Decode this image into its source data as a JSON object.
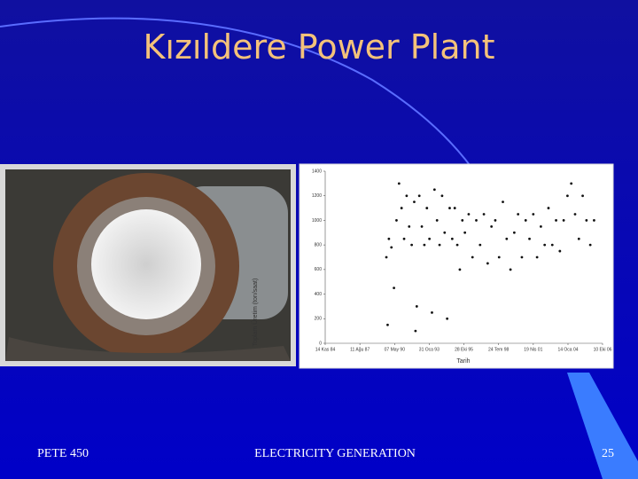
{
  "slide": {
    "title": "Kızıldere Power Plant",
    "footer_left": "PETE 450",
    "footer_center": "ELECTRICITY GENERATION",
    "page_number": "25"
  },
  "chart_data": {
    "type": "scatter",
    "x_label": "Tarih",
    "y_label": "Toplam Üretim (ton/saat)",
    "color": "#111111",
    "x": [
      1989.7,
      1989.8,
      1989.9,
      1990.1,
      1990.3,
      1990.5,
      1990.7,
      1990.9,
      1991.1,
      1991.3,
      1991.5,
      1991.7,
      1991.9,
      1992.0,
      1992.1,
      1992.3,
      1992.5,
      1992.7,
      1992.9,
      1993.1,
      1993.3,
      1993.5,
      1993.7,
      1993.9,
      1994.1,
      1994.3,
      1994.5,
      1994.7,
      1994.9,
      1995.1,
      1995.3,
      1995.5,
      1995.7,
      1995.9,
      1996.2,
      1996.5,
      1996.8,
      1997.1,
      1997.4,
      1997.7,
      1998.0,
      1998.3,
      1998.6,
      1998.9,
      1999.2,
      1999.5,
      1999.8,
      2000.1,
      2000.4,
      2000.7,
      2001.0,
      2001.3,
      2001.6,
      2001.9,
      2002.2,
      2002.5,
      2002.8,
      2003.1,
      2003.4,
      2003.7,
      2004.0,
      2004.3,
      2004.6,
      2004.9,
      2005.2,
      2005.5,
      2005.8,
      2006.1
    ],
    "values": [
      700,
      150,
      850,
      780,
      450,
      1000,
      1300,
      1100,
      850,
      1200,
      950,
      800,
      1150,
      100,
      300,
      1200,
      950,
      800,
      1100,
      850,
      250,
      1250,
      1000,
      800,
      1200,
      900,
      200,
      1100,
      850,
      1100,
      800,
      600,
      1000,
      900,
      1050,
      700,
      1000,
      800,
      1050,
      650,
      950,
      1000,
      700,
      1150,
      850,
      600,
      900,
      1050,
      700,
      1000,
      850,
      1050,
      700,
      950,
      800,
      1100,
      800,
      1000,
      750,
      1000,
      1200,
      1300,
      1050,
      850,
      1200,
      1000,
      800,
      1000
    ],
    "xlim": [
      1984.87,
      2006.77
    ],
    "xticks": [
      {
        "value": 1984.87,
        "label": "14 Kas 84"
      },
      {
        "value": 1987.61,
        "label": "11 Ağu 87"
      },
      {
        "value": 1990.35,
        "label": "07 May 90"
      },
      {
        "value": 1993.08,
        "label": "31 Oca 93"
      },
      {
        "value": 1995.82,
        "label": "28 Eki 95"
      },
      {
        "value": 1998.56,
        "label": "24 Tem 98"
      },
      {
        "value": 2001.3,
        "label": "19 Nis 01"
      },
      {
        "value": 2004.04,
        "label": "14 Oca 04"
      },
      {
        "value": 2006.77,
        "label": "10 Eki 06"
      }
    ],
    "ylim": [
      0,
      1400
    ],
    "yticks": [
      0,
      200,
      400,
      600,
      800,
      1000,
      1200,
      1400
    ],
    "grid": false
  }
}
